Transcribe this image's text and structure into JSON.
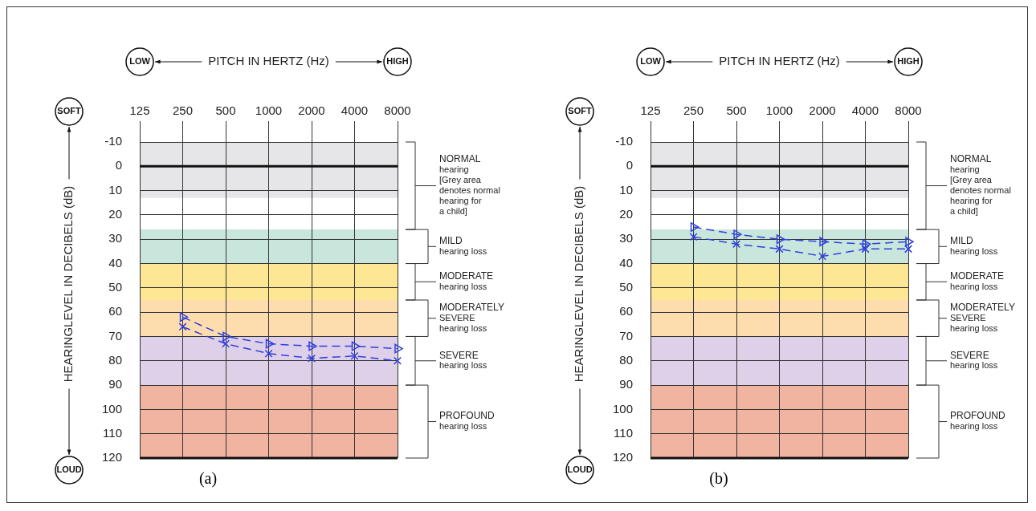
{
  "chart_data": [
    {
      "type": "line",
      "xlabel": "PITCH IN HERTZ (Hz)",
      "ylabel": "HEARINGLEVEL IN DECIBELS (dB)",
      "categories": [
        "125",
        "250",
        "500",
        "1000",
        "2000",
        "4000",
        "8000"
      ],
      "ylim": [
        120,
        -10
      ],
      "yticks": [
        -10,
        0,
        10,
        20,
        30,
        40,
        50,
        60,
        70,
        80,
        90,
        100,
        110,
        120
      ],
      "grid": true,
      "line_style": "dashed",
      "series": [
        {
          "color": "#2f3fe0",
          "marker": "triangle",
          "values": [
            null,
            62,
            70,
            73,
            74,
            74,
            75
          ]
        },
        {
          "color": "#2f3fe0",
          "marker": "cross",
          "values": [
            null,
            66,
            73,
            77,
            79,
            78,
            80
          ]
        }
      ],
      "bands": [
        {
          "axis": "y",
          "from": -10,
          "to": 13,
          "color": "#e6e6e8"
        },
        {
          "axis": "y",
          "from": 26,
          "to": 40,
          "color": "#c8e6dc"
        },
        {
          "axis": "y",
          "from": 40,
          "to": 55,
          "color": "#fde694"
        },
        {
          "axis": "y",
          "from": 55,
          "to": 70,
          "color": "#fddcae"
        },
        {
          "axis": "y",
          "from": 70,
          "to": 90,
          "color": "#ddd0e8"
        },
        {
          "axis": "y",
          "from": 90,
          "to": 120,
          "color": "#f0b4a0"
        }
      ],
      "ref_lines": [
        {
          "axis": "y",
          "value": 0
        }
      ],
      "annotations": [
        "LOW",
        "HIGH",
        "SOFT",
        "LOUD",
        "(a)",
        "NORMAL\nhearing\n[Grey area\ndenotes normal\nhearing for\na child]",
        "MILD\nhearing loss",
        "MODERATE\nhearing loss",
        "MODERATELY\nSEVERE\nhearing loss",
        "SEVERE\nhearing loss",
        "PROFOUND\nhearing loss"
      ]
    },
    {
      "type": "line",
      "xlabel": "PITCH IN HERTZ (Hz)",
      "ylabel": "HEARINGLEVEL IN DECIBELS (dB)",
      "categories": [
        "125",
        "250",
        "500",
        "1000",
        "2000",
        "4000",
        "8000"
      ],
      "ylim": [
        120,
        -10
      ],
      "yticks": [
        -10,
        0,
        10,
        20,
        30,
        40,
        50,
        60,
        70,
        80,
        90,
        100,
        110,
        120
      ],
      "grid": true,
      "line_style": "dashed",
      "series": [
        {
          "color": "#2f3fe0",
          "marker": "triangle",
          "values": [
            null,
            25,
            28,
            30,
            31,
            32,
            31
          ]
        },
        {
          "color": "#2f3fe0",
          "marker": "cross",
          "values": [
            null,
            29,
            32,
            34,
            37,
            34,
            34
          ]
        }
      ],
      "bands": [
        {
          "axis": "y",
          "from": -10,
          "to": 13,
          "color": "#e6e6e8"
        },
        {
          "axis": "y",
          "from": 26,
          "to": 40,
          "color": "#c8e6dc"
        },
        {
          "axis": "y",
          "from": 40,
          "to": 55,
          "color": "#fde694"
        },
        {
          "axis": "y",
          "from": 55,
          "to": 70,
          "color": "#fddcae"
        },
        {
          "axis": "y",
          "from": 70,
          "to": 90,
          "color": "#ddd0e8"
        },
        {
          "axis": "y",
          "from": 90,
          "to": 120,
          "color": "#f0b4a0"
        }
      ],
      "ref_lines": [
        {
          "axis": "y",
          "value": 0
        }
      ],
      "annotations": [
        "LOW",
        "HIGH",
        "SOFT",
        "LOUD",
        "(b)",
        "NORMAL\nhearing\n[Grey area\ndenotes normal\nhearing for\na child]",
        "MILD\nhearing loss",
        "MODERATE\nhearing loss",
        "MODERATELY\nSEVERE\nhearing loss",
        "SEVERE\nhearing loss",
        "PROFOUND\nhearing loss"
      ]
    }
  ]
}
